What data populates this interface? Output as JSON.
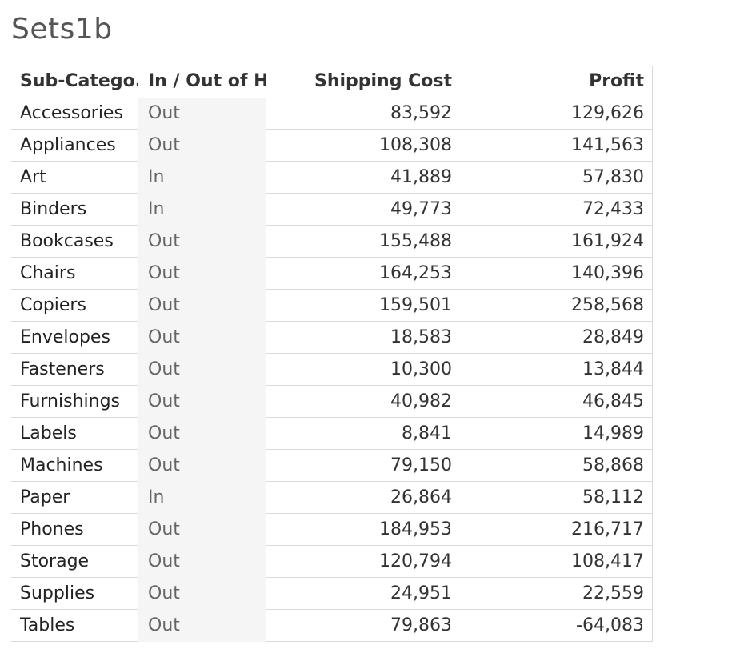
{
  "title": "Sets1b",
  "columns": {
    "sub_category": "Sub-Catego..",
    "in_out": "In / Out of H..",
    "shipping_cost": "Shipping Cost",
    "profit": "Profit"
  },
  "rows": [
    {
      "sub_category": "Accessories",
      "in_out": "Out",
      "shipping_cost": "83,592",
      "profit": "129,626"
    },
    {
      "sub_category": "Appliances",
      "in_out": "Out",
      "shipping_cost": "108,308",
      "profit": "141,563"
    },
    {
      "sub_category": "Art",
      "in_out": "In",
      "shipping_cost": "41,889",
      "profit": "57,830"
    },
    {
      "sub_category": "Binders",
      "in_out": "In",
      "shipping_cost": "49,773",
      "profit": "72,433"
    },
    {
      "sub_category": "Bookcases",
      "in_out": "Out",
      "shipping_cost": "155,488",
      "profit": "161,924"
    },
    {
      "sub_category": "Chairs",
      "in_out": "Out",
      "shipping_cost": "164,253",
      "profit": "140,396"
    },
    {
      "sub_category": "Copiers",
      "in_out": "Out",
      "shipping_cost": "159,501",
      "profit": "258,568"
    },
    {
      "sub_category": "Envelopes",
      "in_out": "Out",
      "shipping_cost": "18,583",
      "profit": "28,849"
    },
    {
      "sub_category": "Fasteners",
      "in_out": "Out",
      "shipping_cost": "10,300",
      "profit": "13,844"
    },
    {
      "sub_category": "Furnishings",
      "in_out": "Out",
      "shipping_cost": "40,982",
      "profit": "46,845"
    },
    {
      "sub_category": "Labels",
      "in_out": "Out",
      "shipping_cost": "8,841",
      "profit": "14,989"
    },
    {
      "sub_category": "Machines",
      "in_out": "Out",
      "shipping_cost": "79,150",
      "profit": "58,868"
    },
    {
      "sub_category": "Paper",
      "in_out": "In",
      "shipping_cost": "26,864",
      "profit": "58,112"
    },
    {
      "sub_category": "Phones",
      "in_out": "Out",
      "shipping_cost": "184,953",
      "profit": "216,717"
    },
    {
      "sub_category": "Storage",
      "in_out": "Out",
      "shipping_cost": "120,794",
      "profit": "108,417"
    },
    {
      "sub_category": "Supplies",
      "in_out": "Out",
      "shipping_cost": "24,951",
      "profit": "22,559"
    },
    {
      "sub_category": "Tables",
      "in_out": "Out",
      "shipping_cost": "79,863",
      "profit": "-64,083"
    }
  ]
}
